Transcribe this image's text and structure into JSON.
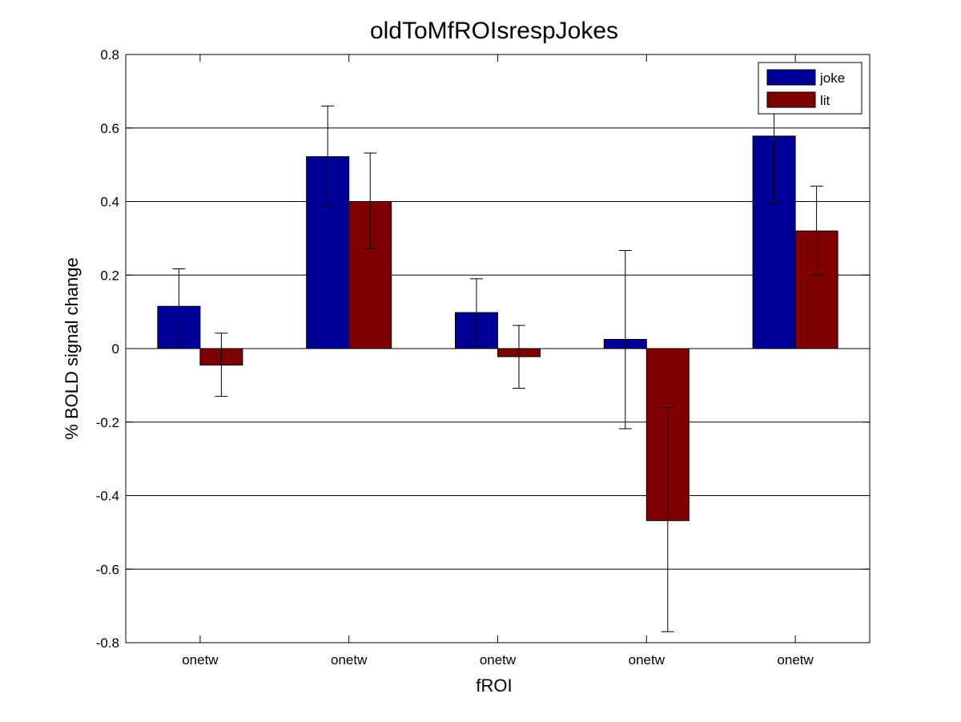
{
  "chart_data": {
    "type": "bar",
    "title": "oldToMfROIsrespJokes",
    "xlabel": "fROI",
    "ylabel": "% BOLD signal change",
    "ylim": [
      -0.8,
      0.8
    ],
    "yticks": [
      -0.8,
      -0.6,
      -0.4,
      -0.2,
      0,
      0.2,
      0.4,
      0.6,
      0.8
    ],
    "ytick_labels": [
      "-0.8",
      "-0.6",
      "-0.4",
      "-0.2",
      "0",
      "0.2",
      "0.4",
      "0.6",
      "0.8"
    ],
    "grid": "horizontal",
    "legend_position": "top-right",
    "categories": [
      "onetw",
      "onetw",
      "onetw",
      "onetw",
      "onetw"
    ],
    "series": [
      {
        "name": "joke",
        "color": "#000099",
        "values": [
          0.115,
          0.522,
          0.098,
          0.025,
          0.578
        ],
        "err_low": [
          0.013,
          0.387,
          0.007,
          -0.218,
          0.394
        ],
        "err_high": [
          0.217,
          0.66,
          0.19,
          0.267,
          0.7
        ]
      },
      {
        "name": "lit",
        "color": "#7f0000",
        "values": [
          -0.045,
          0.4,
          -0.022,
          -0.468,
          0.32
        ],
        "err_low": [
          -0.13,
          0.272,
          -0.108,
          -0.77,
          0.201
        ],
        "err_high": [
          0.042,
          0.532,
          0.063,
          -0.16,
          0.442
        ]
      }
    ]
  }
}
